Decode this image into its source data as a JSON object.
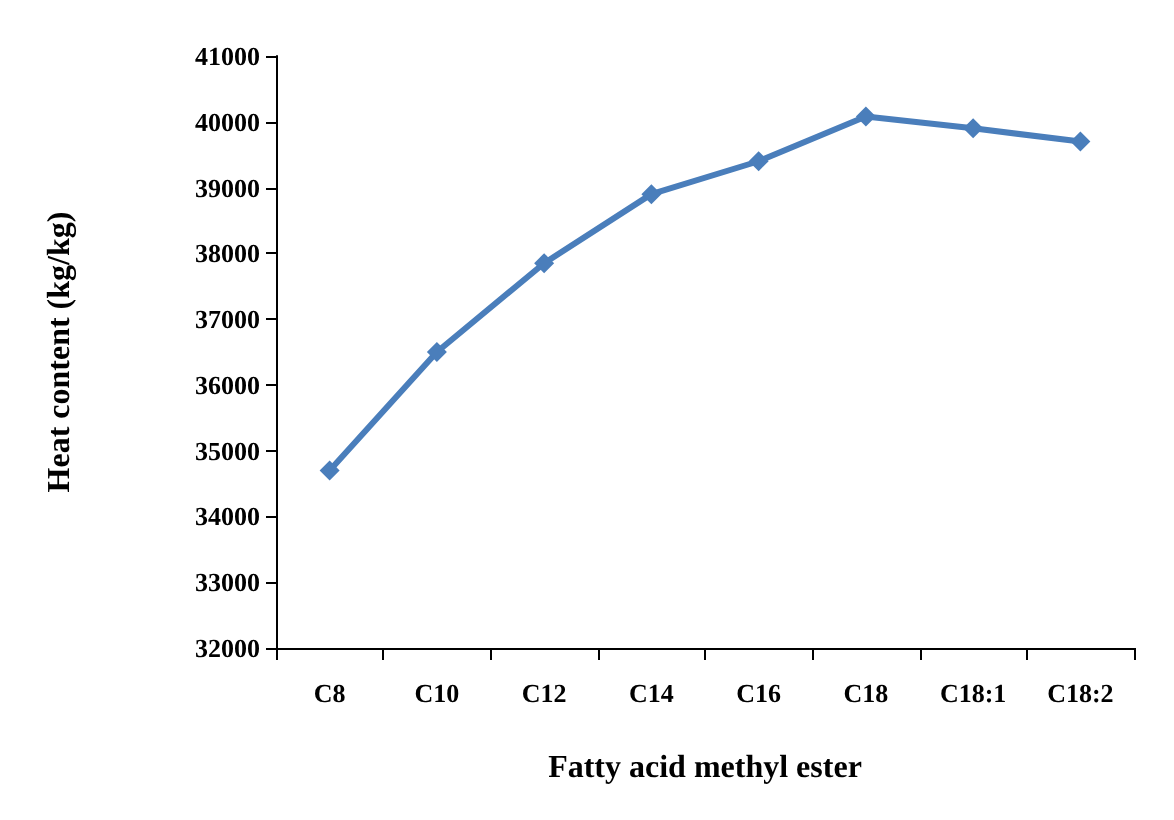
{
  "chart_data": {
    "type": "line",
    "xlabel": "Fatty acid methyl ester",
    "ylabel": "Heat content (kg/kg)",
    "categories": [
      "C8",
      "C10",
      "C12",
      "C14",
      "C16",
      "C18",
      "C18:1",
      "C18:2"
    ],
    "series": [
      {
        "color": "#4a7ebb",
        "values": [
          34700,
          36500,
          37850,
          38900,
          39400,
          40080,
          39900,
          39700
        ]
      }
    ],
    "ylim": [
      32000,
      41000
    ],
    "yticks": [
      32000,
      33000,
      34000,
      35000,
      36000,
      37000,
      38000,
      39000,
      40000,
      41000
    ],
    "grid": false,
    "marker": "diamond",
    "line_style": "solid"
  }
}
